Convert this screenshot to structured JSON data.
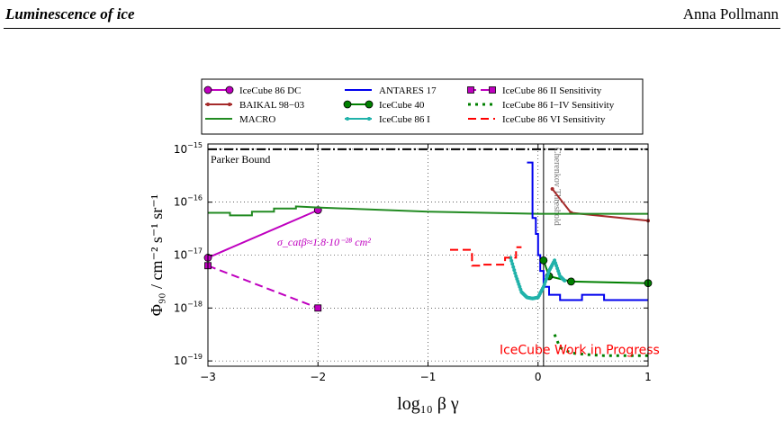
{
  "header": {
    "title": "Luminescence of ice",
    "author": "Anna Pollmann"
  },
  "chart_data": {
    "type": "line",
    "x_label": "log₁₀ β γ",
    "y_label": "Φ₉₀ / cm⁻² s⁻¹ sr⁻¹",
    "x_range": [
      -3.0,
      1.0
    ],
    "y_range_log10": [
      -19.1,
      -14.9
    ],
    "y_scale": "log",
    "grid": true,
    "x_ticks": [
      {
        "v": -3,
        "label": "−3"
      },
      {
        "v": -2,
        "label": "−2"
      },
      {
        "v": -1,
        "label": "−1"
      },
      {
        "v": 0,
        "label": "0"
      },
      {
        "v": 1,
        "label": "1"
      }
    ],
    "y_ticks": [
      {
        "v": -15,
        "b": "10",
        "e": "−15"
      },
      {
        "v": -16,
        "b": "10",
        "e": "−16"
      },
      {
        "v": -17,
        "b": "10",
        "e": "−17"
      },
      {
        "v": -18,
        "b": "10",
        "e": "−18"
      },
      {
        "v": -19,
        "b": "10",
        "e": "−19"
      }
    ],
    "legend_position": "top",
    "series": [
      {
        "name": "IceCube 86 DC",
        "color": "#bf00bf",
        "dash": "solid",
        "marker": "circle",
        "x": [
          -3.0,
          -2.0
        ],
        "y": [
          -17.05,
          -16.15
        ]
      },
      {
        "name": "BAIKAL 98−03",
        "color": "#a52a2a",
        "dash": "solid",
        "marker": "dot",
        "x": [
          0.13,
          0.3,
          1.0
        ],
        "y": [
          -15.75,
          -16.2,
          -16.35
        ]
      },
      {
        "name": "MACRO",
        "color": "#228b22",
        "dash": "solid",
        "marker": "none",
        "step": true,
        "x": [
          -3.0,
          -2.8,
          -2.8,
          -2.6,
          -2.6,
          -2.4,
          -2.4,
          -2.2,
          -2.2,
          -2.0,
          -1.0,
          0.0,
          1.0
        ],
        "y": [
          -16.2,
          -16.2,
          -16.25,
          -16.25,
          -16.18,
          -16.18,
          -16.12,
          -16.12,
          -16.08,
          -16.1,
          -16.18,
          -16.22,
          -16.22
        ]
      },
      {
        "name": "ANTARES 17",
        "color": "#0000ee",
        "dash": "solid",
        "marker": "none",
        "step": true,
        "x": [
          -0.1,
          -0.05,
          -0.05,
          -0.02,
          -0.02,
          0.0,
          0.0,
          0.02,
          0.02,
          0.05,
          0.05,
          0.1,
          0.1,
          0.2,
          0.2,
          0.4,
          0.4,
          0.6,
          0.6,
          1.0
        ],
        "y": [
          -15.25,
          -15.25,
          -16.3,
          -16.3,
          -16.6,
          -16.6,
          -17.0,
          -17.0,
          -17.3,
          -17.3,
          -17.6,
          -17.6,
          -17.75,
          -17.75,
          -17.85,
          -17.85,
          -17.75,
          -17.75,
          -17.85,
          -17.85
        ]
      },
      {
        "name": "IceCube 40",
        "color": "#008000",
        "dash": "solid",
        "marker": "circle",
        "x": [
          0.05,
          0.1,
          0.3,
          1.0
        ],
        "y": [
          -17.1,
          -17.4,
          -17.5,
          -17.53
        ]
      },
      {
        "name": "IceCube 86 I",
        "color": "#20b2aa",
        "dash": "solid",
        "marker": "dot-dense",
        "x": [
          -0.25,
          -0.2,
          -0.15,
          -0.1,
          -0.05,
          0.0,
          0.05,
          0.1,
          0.15,
          0.2,
          0.25
        ],
        "y": [
          -17.05,
          -17.4,
          -17.7,
          -17.8,
          -17.82,
          -17.8,
          -17.6,
          -17.3,
          -17.1,
          -17.4,
          -17.5
        ]
      },
      {
        "name": "IceCube 86 II Sensitivity",
        "color": "#bf00bf",
        "dash": "dashed",
        "marker": "square",
        "x": [
          -3.0,
          -2.0
        ],
        "y": [
          -17.2,
          -18.0
        ]
      },
      {
        "name": "IceCube 86 I−IV Sensitivity",
        "color": "#008000",
        "dash": "dotted",
        "marker": "none",
        "x": [
          0.15,
          0.2,
          0.3,
          0.45,
          0.6,
          0.8,
          1.0
        ],
        "y": [
          -18.5,
          -18.75,
          -18.85,
          -18.88,
          -18.9,
          -18.9,
          -18.9
        ]
      },
      {
        "name": "IceCube 86 VI Sensitivity",
        "color": "#ff0000",
        "dash": "dashed",
        "marker": "none",
        "step": true,
        "x": [
          -0.8,
          -0.6,
          -0.6,
          -0.5,
          -0.5,
          -0.3,
          -0.3,
          -0.2,
          -0.2,
          -0.15
        ],
        "y": [
          -16.9,
          -16.9,
          -17.2,
          -17.2,
          -17.18,
          -17.18,
          -17.05,
          -17.05,
          -16.85,
          -16.85
        ]
      }
    ],
    "reference_lines": [
      {
        "label": "Parker Bound",
        "y": -15.0,
        "style": "dash-dot",
        "color": "#000000"
      }
    ],
    "vertical_lines": [
      {
        "label": "Cherenkov Threshold",
        "x": 0.05,
        "color": "#000000"
      }
    ],
    "annotations": [
      {
        "text": "σ_catβ≈1.8·10⁻²⁸ cm²",
        "color": "#bf00bf"
      },
      {
        "text": "IceCube Work in Progress",
        "color": "#ff0000"
      }
    ]
  }
}
